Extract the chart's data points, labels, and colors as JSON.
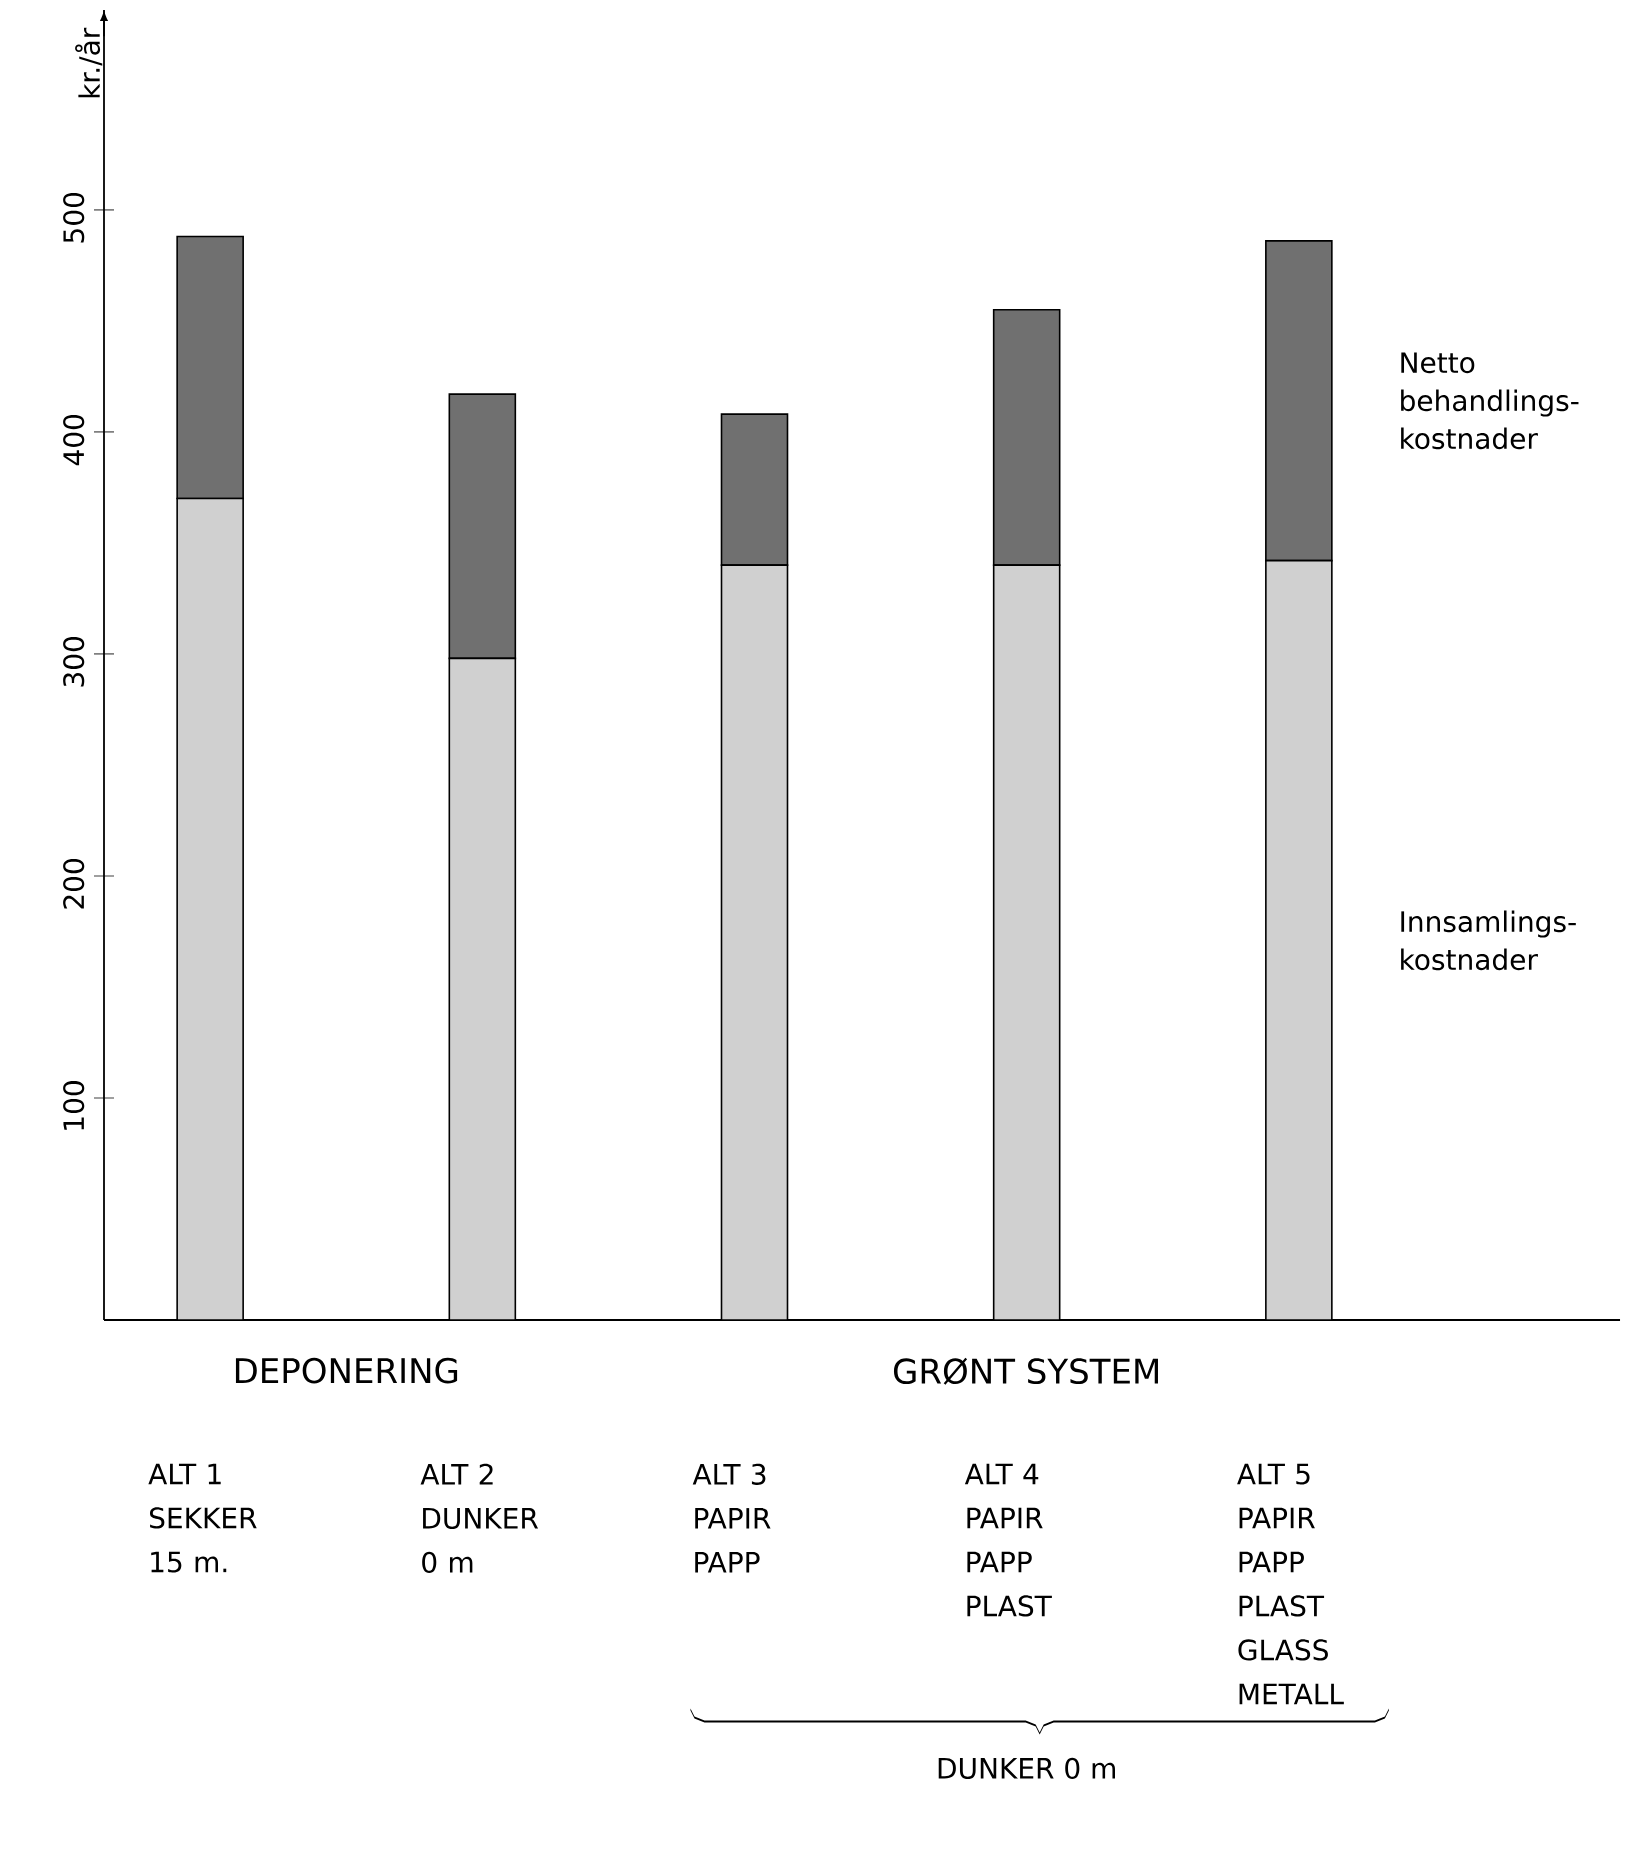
{
  "chart_data": {
    "type": "bar",
    "stacked": true,
    "ylabel": "kr./år",
    "categories": [
      "ALT 1 SEKKER 15 m.",
      "ALT 2 DUNKER 0 m",
      "ALT 3 PAPIR PAPP",
      "ALT 4 PAPIR PAPP PLAST",
      "ALT 5 PAPIR PAPP PLAST GLASS METALL"
    ],
    "series": [
      {
        "name": "Innsamlings-kostnader",
        "color": "#d0d0d0",
        "values": [
          370,
          298,
          340,
          340,
          342
        ]
      },
      {
        "name": "Netto behandlings-kostnader",
        "color": "#707070",
        "values": [
          118,
          119,
          68,
          115,
          144
        ]
      }
    ],
    "ylim": [
      0,
      590
    ],
    "yticks": [
      100,
      200,
      300,
      400,
      500
    ],
    "annotations": [
      "DEPONERING",
      "GRØNT SYSTEM",
      "DUNKER 0 m"
    ]
  }
}
